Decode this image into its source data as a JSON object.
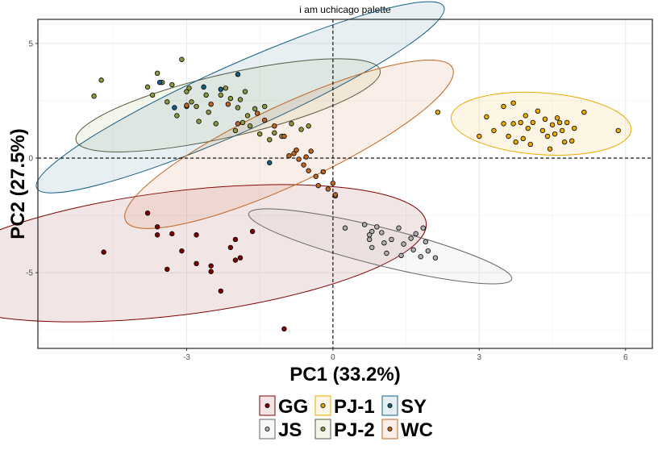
{
  "chart_data": {
    "type": "scatter",
    "title": "i am uchicago palette",
    "xlabel": "PC1 (33.2%)",
    "ylabel": "PC2 (27.5%)",
    "xlim": [
      -6.05,
      6.55
    ],
    "ylim": [
      -8.3,
      6.05
    ],
    "xticks": [
      -3,
      0,
      3,
      6
    ],
    "yticks": [
      -5,
      0,
      5
    ],
    "grid": true,
    "reference_lines": {
      "x": 0,
      "y": 0
    },
    "legend_position": "bottom",
    "series": [
      {
        "name": "GG",
        "fill": "#800000",
        "stroke": "#800000",
        "ellipse": {
          "cx": -3.2,
          "cy": -4.15,
          "rx": 5.15,
          "ry": 2.7,
          "angle_deg": 7
        },
        "points": [
          [
            -4.7,
            -4.1
          ],
          [
            -3.8,
            -2.4
          ],
          [
            -3.6,
            -3.0
          ],
          [
            -3.6,
            -3.35
          ],
          [
            -3.3,
            -3.3
          ],
          [
            -3.4,
            -4.85
          ],
          [
            -3.1,
            -4.05
          ],
          [
            -2.8,
            -3.35
          ],
          [
            -2.8,
            -4.6
          ],
          [
            -2.5,
            -4.7
          ],
          [
            -2.5,
            -4.95
          ],
          [
            -2.3,
            -5.8
          ],
          [
            -2.1,
            -3.9
          ],
          [
            -2.0,
            -4.45
          ],
          [
            -2.0,
            -3.55
          ],
          [
            -1.9,
            -4.35
          ],
          [
            -1.65,
            -3.2
          ],
          [
            -1.0,
            -7.45
          ]
        ]
      },
      {
        "name": "JS",
        "fill": "#b0b0b0",
        "stroke": "#666666",
        "ellipse": {
          "cx": 0.97,
          "cy": -3.85,
          "rx": 2.78,
          "ry": 0.82,
          "angle_deg": -14
        },
        "points": [
          [
            0.05,
            -1.65
          ],
          [
            0.25,
            -3.05
          ],
          [
            0.65,
            -2.9
          ],
          [
            0.75,
            -3.35
          ],
          [
            0.75,
            -3.55
          ],
          [
            0.8,
            -3.9
          ],
          [
            0.8,
            -3.2
          ],
          [
            0.9,
            -3.0
          ],
          [
            1.0,
            -3.25
          ],
          [
            1.05,
            -3.7
          ],
          [
            1.1,
            -4.15
          ],
          [
            1.2,
            -3.55
          ],
          [
            1.35,
            -3.05
          ],
          [
            1.4,
            -4.25
          ],
          [
            1.45,
            -3.75
          ],
          [
            1.6,
            -3.5
          ],
          [
            1.65,
            -4.0
          ],
          [
            1.7,
            -3.3
          ],
          [
            1.8,
            -4.3
          ],
          [
            1.85,
            -3.05
          ],
          [
            1.9,
            -3.65
          ],
          [
            1.95,
            -4.05
          ],
          [
            2.1,
            -4.35
          ]
        ]
      },
      {
        "name": "PJ-1",
        "fill": "#EAAA00",
        "stroke": "#EAAA00",
        "ellipse": {
          "cx": 4.27,
          "cy": 1.5,
          "rx": 1.85,
          "ry": 1.35,
          "angle_deg": -4
        },
        "points": [
          [
            2.15,
            2.0
          ],
          [
            3.0,
            0.95
          ],
          [
            3.15,
            1.8
          ],
          [
            3.3,
            1.2
          ],
          [
            3.5,
            1.5
          ],
          [
            3.5,
            2.25
          ],
          [
            3.6,
            0.95
          ],
          [
            3.7,
            1.5
          ],
          [
            3.7,
            2.4
          ],
          [
            3.75,
            0.7
          ],
          [
            3.85,
            1.55
          ],
          [
            3.9,
            0.85
          ],
          [
            3.95,
            1.85
          ],
          [
            4.0,
            1.3
          ],
          [
            4.05,
            0.6
          ],
          [
            4.1,
            1.55
          ],
          [
            4.2,
            2.05
          ],
          [
            4.3,
            1.2
          ],
          [
            4.35,
            1.7
          ],
          [
            4.4,
            0.95
          ],
          [
            4.45,
            0.4
          ],
          [
            4.5,
            1.45
          ],
          [
            4.55,
            1.05
          ],
          [
            4.6,
            1.75
          ],
          [
            4.65,
            1.55
          ],
          [
            4.7,
            1.2
          ],
          [
            4.75,
            0.7
          ],
          [
            4.8,
            1.55
          ],
          [
            4.9,
            0.75
          ],
          [
            4.95,
            1.3
          ],
          [
            5.15,
            2.0
          ],
          [
            5.85,
            1.2
          ]
        ]
      },
      {
        "name": "PJ-2",
        "fill": "#8F993E",
        "stroke": "#58593F",
        "ellipse": {
          "cx": -2.15,
          "cy": 2.3,
          "rx": 3.2,
          "ry": 1.37,
          "angle_deg": 13
        },
        "points": [
          [
            -4.9,
            2.7
          ],
          [
            -4.75,
            3.4
          ],
          [
            -3.8,
            3.1
          ],
          [
            -3.7,
            2.75
          ],
          [
            -3.6,
            3.7
          ],
          [
            -3.5,
            3.3
          ],
          [
            -3.4,
            2.45
          ],
          [
            -3.3,
            3.2
          ],
          [
            -3.2,
            1.85
          ],
          [
            -3.1,
            4.3
          ],
          [
            -3.0,
            2.9
          ],
          [
            -3.0,
            2.25
          ],
          [
            -2.95,
            3.05
          ],
          [
            -2.9,
            2.45
          ],
          [
            -2.8,
            2.25
          ],
          [
            -2.75,
            1.6
          ],
          [
            -2.6,
            2.75
          ],
          [
            -2.55,
            2.0
          ],
          [
            -2.4,
            1.5
          ],
          [
            -2.3,
            2.75
          ],
          [
            -2.2,
            3.05
          ],
          [
            -2.1,
            2.6
          ],
          [
            -2.0,
            1.2
          ],
          [
            -1.95,
            2.2
          ],
          [
            -1.9,
            2.55
          ],
          [
            -1.85,
            1.55
          ],
          [
            -1.8,
            2.9
          ],
          [
            -1.75,
            1.85
          ],
          [
            -1.7,
            1.4
          ],
          [
            -1.6,
            2.15
          ],
          [
            -1.5,
            1.05
          ],
          [
            -1.4,
            2.25
          ],
          [
            -1.3,
            0.8
          ],
          [
            -1.2,
            1.1
          ],
          [
            -1.05,
            0.95
          ],
          [
            -0.85,
            1.5
          ],
          [
            -0.65,
            1.25
          ],
          [
            -0.5,
            1.4
          ]
        ]
      },
      {
        "name": "SY",
        "fill": "#155F83",
        "stroke": "#155F83",
        "ellipse": {
          "cx": -1.9,
          "cy": 2.65,
          "rx": 4.57,
          "ry": 1.45,
          "angle_deg": 24
        },
        "points": [
          [
            -3.55,
            3.3
          ],
          [
            -3.25,
            2.2
          ],
          [
            -2.65,
            3.1
          ],
          [
            -2.3,
            3.0
          ],
          [
            -1.95,
            3.65
          ],
          [
            -1.3,
            -0.2
          ]
        ]
      },
      {
        "name": "WC",
        "fill": "#C16622",
        "stroke": "#C16622",
        "ellipse": {
          "cx": -0.9,
          "cy": 0.6,
          "rx": 3.7,
          "ry": 1.72,
          "angle_deg": 25
        },
        "points": [
          [
            -3.0,
            2.3
          ],
          [
            -2.5,
            2.35
          ],
          [
            -2.15,
            2.35
          ],
          [
            -1.95,
            1.5
          ],
          [
            -1.55,
            1.95
          ],
          [
            -1.4,
            1.65
          ],
          [
            -1.2,
            1.4
          ],
          [
            -1.0,
            0.95
          ],
          [
            -0.9,
            0.1
          ],
          [
            -0.8,
            0.2
          ],
          [
            -0.75,
            0.35
          ],
          [
            -0.7,
            -0.05
          ],
          [
            -0.6,
            -0.3
          ],
          [
            -0.55,
            0.05
          ],
          [
            -0.5,
            -0.55
          ],
          [
            -0.45,
            0.3
          ],
          [
            -0.35,
            -0.8
          ],
          [
            -0.3,
            -1.2
          ],
          [
            -0.2,
            -0.6
          ],
          [
            -0.1,
            -1.35
          ],
          [
            0.0,
            -1.1
          ],
          [
            0.05,
            -1.6
          ]
        ]
      }
    ]
  }
}
